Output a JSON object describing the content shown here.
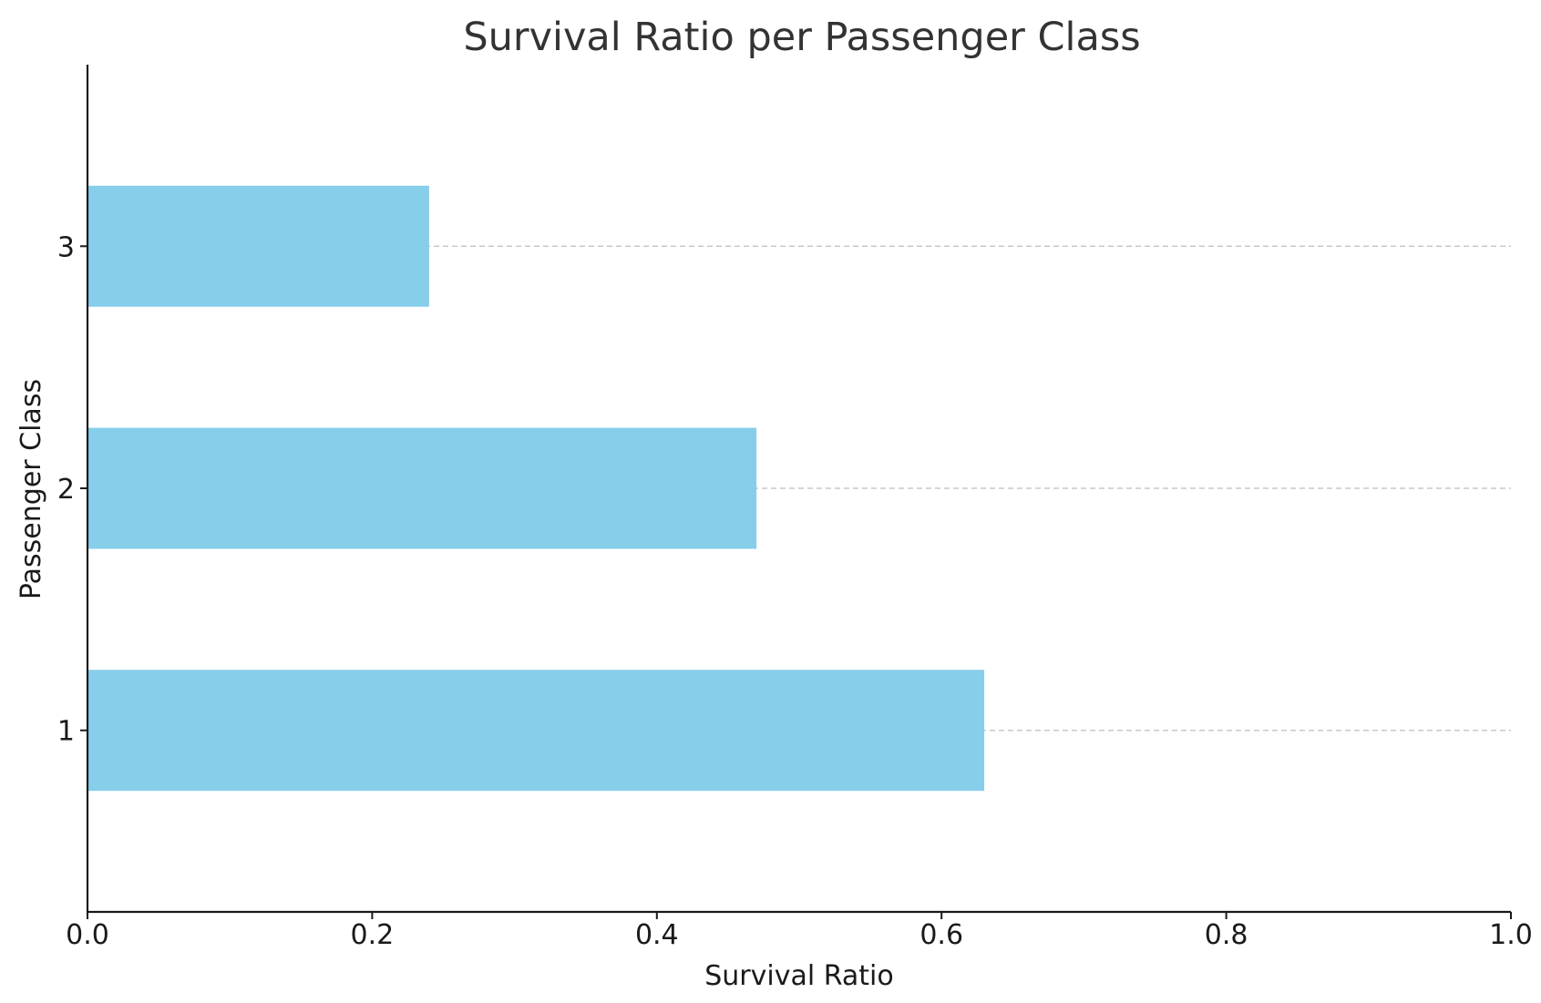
{
  "chart_data": {
    "type": "bar",
    "orientation": "horizontal",
    "title": "Survival Ratio per Passenger Class",
    "xlabel": "Survival Ratio",
    "ylabel": "Passenger Class",
    "categories": [
      "1",
      "2",
      "3"
    ],
    "values": [
      0.63,
      0.47,
      0.24
    ],
    "xlim": [
      0.0,
      1.0
    ],
    "xticks": [
      "0.0",
      "0.2",
      "0.4",
      "0.6",
      "0.8",
      "1.0"
    ],
    "grid": "horizontal dashed",
    "legend": "none",
    "colors": {
      "bar": "#87ceeb",
      "grid": "#c8c8c8",
      "axis": "#1a1a1a",
      "title": "#333333"
    }
  }
}
